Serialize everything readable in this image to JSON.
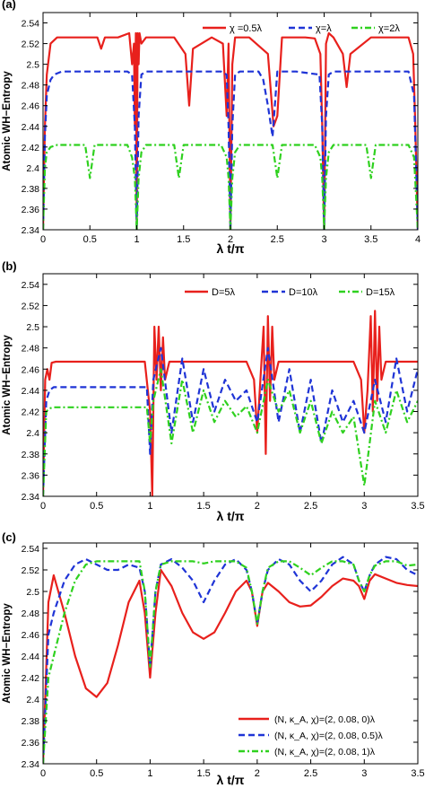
{
  "chart_data": [
    {
      "panel_label": "(a)",
      "type": "line",
      "xlabel": "λ t/π",
      "ylabel": "Atomic WH−Entropy",
      "xlim": [
        0,
        4
      ],
      "ylim": [
        2.34,
        2.55
      ],
      "xticks": [
        0,
        0.5,
        1,
        1.5,
        2,
        2.5,
        3,
        3.5,
        4
      ],
      "xtick_labels": [
        "0",
        "0.5",
        "1",
        "1.5",
        "2",
        "2.5",
        "3",
        "3.5",
        "4"
      ],
      "yticks": [
        2.34,
        2.36,
        2.38,
        2.4,
        2.42,
        2.44,
        2.46,
        2.48,
        2.5,
        2.52,
        2.54
      ],
      "ytick_labels": [
        "2.34",
        "2.36",
        "2.38",
        "2.4",
        "2.42",
        "2.44",
        "2.46",
        "2.48",
        "2.5",
        "2.52",
        "2.54"
      ],
      "legend_position": "top-right",
      "series": [
        {
          "name": "χ =0.5λ",
          "color": "#e8201c",
          "dash": "solid",
          "x": [
            0,
            0.02,
            0.04,
            0.08,
            0.15,
            0.3,
            0.58,
            0.62,
            0.66,
            0.8,
            0.92,
            0.95,
            0.97,
            0.98,
            0.99,
            1.0,
            1.01,
            1.02,
            1.03,
            1.05,
            1.1,
            1.4,
            1.52,
            1.56,
            1.6,
            1.8,
            1.92,
            1.96,
            1.98,
            2.0,
            2.02,
            2.05,
            2.2,
            2.4,
            2.46,
            2.5,
            2.55,
            2.8,
            2.9,
            2.96,
            2.98,
            3.0,
            3.02,
            3.05,
            3.1,
            3.2,
            3.24,
            3.28,
            3.5,
            3.8,
            3.9,
            3.95,
            3.97,
            4.0
          ],
          "y": [
            2.34,
            2.44,
            2.49,
            2.52,
            2.526,
            2.526,
            2.526,
            2.515,
            2.526,
            2.526,
            2.53,
            2.5,
            2.52,
            2.44,
            2.53,
            2.34,
            2.53,
            2.5,
            2.53,
            2.52,
            2.526,
            2.526,
            2.51,
            2.46,
            2.515,
            2.526,
            2.52,
            2.45,
            2.52,
            2.34,
            2.5,
            2.526,
            2.526,
            2.51,
            2.44,
            2.45,
            2.526,
            2.526,
            2.525,
            2.51,
            2.44,
            2.34,
            2.52,
            2.53,
            2.526,
            2.51,
            2.478,
            2.51,
            2.526,
            2.526,
            2.526,
            2.51,
            2.45,
            2.34
          ]
        },
        {
          "name": "χ=λ",
          "color": "#1f34d6",
          "dash": "dashed",
          "x": [
            0,
            0.02,
            0.04,
            0.08,
            0.12,
            0.2,
            0.5,
            0.9,
            0.95,
            0.98,
            1.0,
            1.02,
            1.05,
            1.1,
            1.3,
            1.6,
            1.9,
            1.96,
            1.98,
            2.0,
            2.02,
            2.05,
            2.1,
            2.3,
            2.35,
            2.4,
            2.45,
            2.5,
            2.7,
            2.95,
            2.98,
            3.0,
            3.02,
            3.05,
            3.1,
            3.5,
            3.9,
            3.96,
            4.0
          ],
          "y": [
            2.34,
            2.43,
            2.47,
            2.485,
            2.49,
            2.493,
            2.493,
            2.493,
            2.49,
            2.44,
            2.34,
            2.45,
            2.49,
            2.493,
            2.493,
            2.493,
            2.493,
            2.49,
            2.44,
            2.34,
            2.44,
            2.49,
            2.493,
            2.493,
            2.485,
            2.46,
            2.43,
            2.493,
            2.493,
            2.49,
            2.44,
            2.34,
            2.45,
            2.49,
            2.493,
            2.493,
            2.493,
            2.47,
            2.34
          ]
        },
        {
          "name": "χ=2λ",
          "color": "#2fd11f",
          "dash": "dashdot",
          "x": [
            0,
            0.02,
            0.04,
            0.08,
            0.15,
            0.3,
            0.45,
            0.5,
            0.55,
            0.9,
            0.95,
            0.98,
            1.0,
            1.02,
            1.05,
            1.1,
            1.4,
            1.45,
            1.5,
            1.9,
            1.96,
            1.98,
            2.0,
            2.02,
            2.05,
            2.1,
            2.45,
            2.5,
            2.55,
            2.9,
            2.96,
            2.98,
            3.0,
            3.02,
            3.05,
            3.1,
            3.45,
            3.5,
            3.55,
            3.9,
            3.96,
            4.0
          ],
          "y": [
            2.34,
            2.4,
            2.415,
            2.42,
            2.422,
            2.422,
            2.422,
            2.39,
            2.422,
            2.422,
            2.41,
            2.39,
            2.34,
            2.39,
            2.415,
            2.422,
            2.422,
            2.39,
            2.422,
            2.422,
            2.41,
            2.39,
            2.34,
            2.39,
            2.415,
            2.422,
            2.422,
            2.39,
            2.422,
            2.422,
            2.41,
            2.39,
            2.34,
            2.39,
            2.415,
            2.422,
            2.422,
            2.39,
            2.422,
            2.422,
            2.41,
            2.34
          ]
        }
      ]
    },
    {
      "panel_label": "(b)",
      "type": "line",
      "xlabel": "λ t/π",
      "ylabel": "Atomic WH−Entropy",
      "xlim": [
        0,
        3.5
      ],
      "ylim": [
        2.34,
        2.55
      ],
      "xticks": [
        0,
        0.5,
        1,
        1.5,
        2,
        2.5,
        3,
        3.5
      ],
      "xtick_labels": [
        "0",
        "0.5",
        "1",
        "1.5",
        "2",
        "2.5",
        "3",
        "3.5"
      ],
      "yticks": [
        2.34,
        2.36,
        2.38,
        2.4,
        2.42,
        2.44,
        2.46,
        2.48,
        2.5,
        2.52,
        2.54
      ],
      "ytick_labels": [
        "2.34",
        "2.36",
        "2.38",
        "2.4",
        "2.42",
        "2.44",
        "2.46",
        "2.48",
        "2.5",
        "2.52",
        "2.54"
      ],
      "legend_position": "top-right",
      "series": [
        {
          "name": "D=5λ",
          "color": "#e8201c",
          "dash": "solid",
          "x": [
            0,
            0.02,
            0.04,
            0.06,
            0.08,
            0.12,
            0.5,
            0.95,
            1.0,
            1.02,
            1.04,
            1.06,
            1.08,
            1.1,
            1.12,
            1.14,
            1.18,
            1.3,
            1.9,
            1.97,
            2.0,
            2.03,
            2.06,
            2.08,
            2.1,
            2.12,
            2.14,
            2.16,
            2.2,
            2.3,
            2.9,
            2.97,
            3.0,
            3.03,
            3.06,
            3.08,
            3.1,
            3.12,
            3.14,
            3.16,
            3.2,
            3.3,
            3.5
          ],
          "y": [
            2.34,
            2.45,
            2.46,
            2.45,
            2.466,
            2.467,
            2.467,
            2.467,
            2.42,
            2.34,
            2.5,
            2.45,
            2.5,
            2.44,
            2.49,
            2.45,
            2.467,
            2.467,
            2.467,
            2.45,
            2.4,
            2.45,
            2.5,
            2.38,
            2.51,
            2.43,
            2.5,
            2.45,
            2.467,
            2.467,
            2.467,
            2.45,
            2.4,
            2.44,
            2.51,
            2.42,
            2.515,
            2.43,
            2.5,
            2.45,
            2.467,
            2.467,
            2.467
          ]
        },
        {
          "name": "D=10λ",
          "color": "#1f34d6",
          "dash": "dashed",
          "x": [
            0,
            0.03,
            0.06,
            0.1,
            0.5,
            0.97,
            1.0,
            1.03,
            1.1,
            1.2,
            1.3,
            1.4,
            1.5,
            1.6,
            1.7,
            1.8,
            1.9,
            2.0,
            2.1,
            2.2,
            2.3,
            2.4,
            2.5,
            2.6,
            2.7,
            2.8,
            2.9,
            3.0,
            3.1,
            3.2,
            3.3,
            3.4,
            3.5
          ],
          "y": [
            2.34,
            2.43,
            2.44,
            2.443,
            2.443,
            2.443,
            2.38,
            2.45,
            2.48,
            2.4,
            2.47,
            2.41,
            2.46,
            2.42,
            2.45,
            2.43,
            2.44,
            2.41,
            2.48,
            2.41,
            2.46,
            2.4,
            2.45,
            2.39,
            2.44,
            2.41,
            2.43,
            2.4,
            2.45,
            2.41,
            2.47,
            2.42,
            2.46
          ]
        },
        {
          "name": "D=15λ",
          "color": "#2fd11f",
          "dash": "dashdot",
          "x": [
            0,
            0.03,
            0.06,
            0.1,
            0.5,
            0.97,
            1.0,
            1.03,
            1.1,
            1.2,
            1.3,
            1.4,
            1.5,
            1.6,
            1.7,
            1.8,
            1.9,
            2.0,
            2.1,
            2.2,
            2.3,
            2.4,
            2.5,
            2.6,
            2.7,
            2.8,
            2.9,
            3.0,
            3.1,
            3.2,
            3.3,
            3.4,
            3.5
          ],
          "y": [
            2.34,
            2.42,
            2.423,
            2.424,
            2.424,
            2.424,
            2.39,
            2.43,
            2.46,
            2.39,
            2.45,
            2.4,
            2.44,
            2.41,
            2.43,
            2.415,
            2.425,
            2.4,
            2.45,
            2.42,
            2.44,
            2.4,
            2.43,
            2.39,
            2.42,
            2.4,
            2.415,
            2.35,
            2.43,
            2.4,
            2.44,
            2.41,
            2.43
          ]
        }
      ]
    },
    {
      "panel_label": "(c)",
      "type": "line",
      "xlabel": "λ t/π",
      "ylabel": "Atomic WH−Entropy",
      "xlim": [
        0,
        3.5
      ],
      "ylim": [
        2.34,
        2.545
      ],
      "xticks": [
        0,
        0.5,
        1,
        1.5,
        2,
        2.5,
        3,
        3.5
      ],
      "xtick_labels": [
        "0",
        "0.5",
        "1",
        "1.5",
        "2",
        "2.5",
        "3",
        "3.5"
      ],
      "yticks": [
        2.34,
        2.36,
        2.38,
        2.4,
        2.42,
        2.44,
        2.46,
        2.48,
        2.5,
        2.52,
        2.54
      ],
      "ytick_labels": [
        "2.34",
        "2.36",
        "2.38",
        "2.4",
        "2.42",
        "2.44",
        "2.46",
        "2.48",
        "2.5",
        "2.52",
        "2.54"
      ],
      "legend_position": "bottom-right",
      "series": [
        {
          "name": "(N, κ_A, χ)=(2, 0.08, 0)λ",
          "color": "#e8201c",
          "dash": "solid",
          "x": [
            0,
            0.05,
            0.1,
            0.2,
            0.3,
            0.4,
            0.5,
            0.6,
            0.7,
            0.8,
            0.9,
            0.95,
            1.0,
            1.05,
            1.1,
            1.2,
            1.3,
            1.4,
            1.5,
            1.6,
            1.7,
            1.8,
            1.9,
            1.95,
            2.0,
            2.05,
            2.1,
            2.2,
            2.3,
            2.4,
            2.5,
            2.6,
            2.7,
            2.8,
            2.9,
            2.95,
            3.0,
            3.05,
            3.1,
            3.2,
            3.3,
            3.4,
            3.5
          ],
          "y": [
            2.34,
            2.49,
            2.515,
            2.48,
            2.44,
            2.41,
            2.402,
            2.415,
            2.45,
            2.49,
            2.51,
            2.48,
            2.42,
            2.48,
            2.52,
            2.505,
            2.48,
            2.462,
            2.456,
            2.462,
            2.48,
            2.5,
            2.51,
            2.5,
            2.468,
            2.5,
            2.508,
            2.5,
            2.49,
            2.486,
            2.487,
            2.495,
            2.505,
            2.512,
            2.51,
            2.505,
            2.493,
            2.51,
            2.516,
            2.512,
            2.508,
            2.506,
            2.505
          ]
        },
        {
          "name": "(N, κ_A, χ)=(2, 0.08, 0.5)λ",
          "color": "#1f34d6",
          "dash": "dashed",
          "x": [
            0,
            0.05,
            0.1,
            0.2,
            0.3,
            0.4,
            0.5,
            0.6,
            0.7,
            0.8,
            0.9,
            0.95,
            1.0,
            1.05,
            1.1,
            1.2,
            1.3,
            1.4,
            1.5,
            1.6,
            1.7,
            1.8,
            1.9,
            1.95,
            2.0,
            2.05,
            2.1,
            2.2,
            2.3,
            2.4,
            2.5,
            2.6,
            2.7,
            2.8,
            2.9,
            2.95,
            3.0,
            3.05,
            3.1,
            3.2,
            3.3,
            3.4,
            3.5
          ],
          "y": [
            2.34,
            2.46,
            2.48,
            2.51,
            2.525,
            2.53,
            2.525,
            2.52,
            2.52,
            2.525,
            2.522,
            2.5,
            2.43,
            2.5,
            2.525,
            2.53,
            2.522,
            2.51,
            2.49,
            2.51,
            2.525,
            2.53,
            2.52,
            2.5,
            2.47,
            2.5,
            2.52,
            2.53,
            2.525,
            2.51,
            2.5,
            2.51,
            2.525,
            2.532,
            2.525,
            2.51,
            2.5,
            2.515,
            2.525,
            2.532,
            2.53,
            2.52,
            2.515
          ]
        },
        {
          "name": "(N, κ_A, χ)=(2, 0.08, 1)λ",
          "color": "#2fd11f",
          "dash": "dashdot",
          "x": [
            0,
            0.05,
            0.1,
            0.2,
            0.3,
            0.4,
            0.5,
            0.6,
            0.7,
            0.8,
            0.9,
            0.95,
            1.0,
            1.05,
            1.1,
            1.2,
            1.3,
            1.4,
            1.5,
            1.6,
            1.7,
            1.8,
            1.9,
            1.95,
            2.0,
            2.05,
            2.1,
            2.2,
            2.3,
            2.4,
            2.5,
            2.6,
            2.7,
            2.8,
            2.9,
            2.95,
            3.0,
            3.05,
            3.1,
            3.2,
            3.3,
            3.4,
            3.5
          ],
          "y": [
            2.34,
            2.42,
            2.44,
            2.48,
            2.51,
            2.525,
            2.528,
            2.528,
            2.528,
            2.528,
            2.528,
            2.5,
            2.43,
            2.5,
            2.525,
            2.528,
            2.528,
            2.528,
            2.526,
            2.528,
            2.528,
            2.528,
            2.522,
            2.5,
            2.47,
            2.5,
            2.522,
            2.528,
            2.528,
            2.522,
            2.515,
            2.522,
            2.528,
            2.528,
            2.525,
            2.51,
            2.5,
            2.515,
            2.524,
            2.528,
            2.528,
            2.524,
            2.525
          ]
        }
      ]
    }
  ]
}
